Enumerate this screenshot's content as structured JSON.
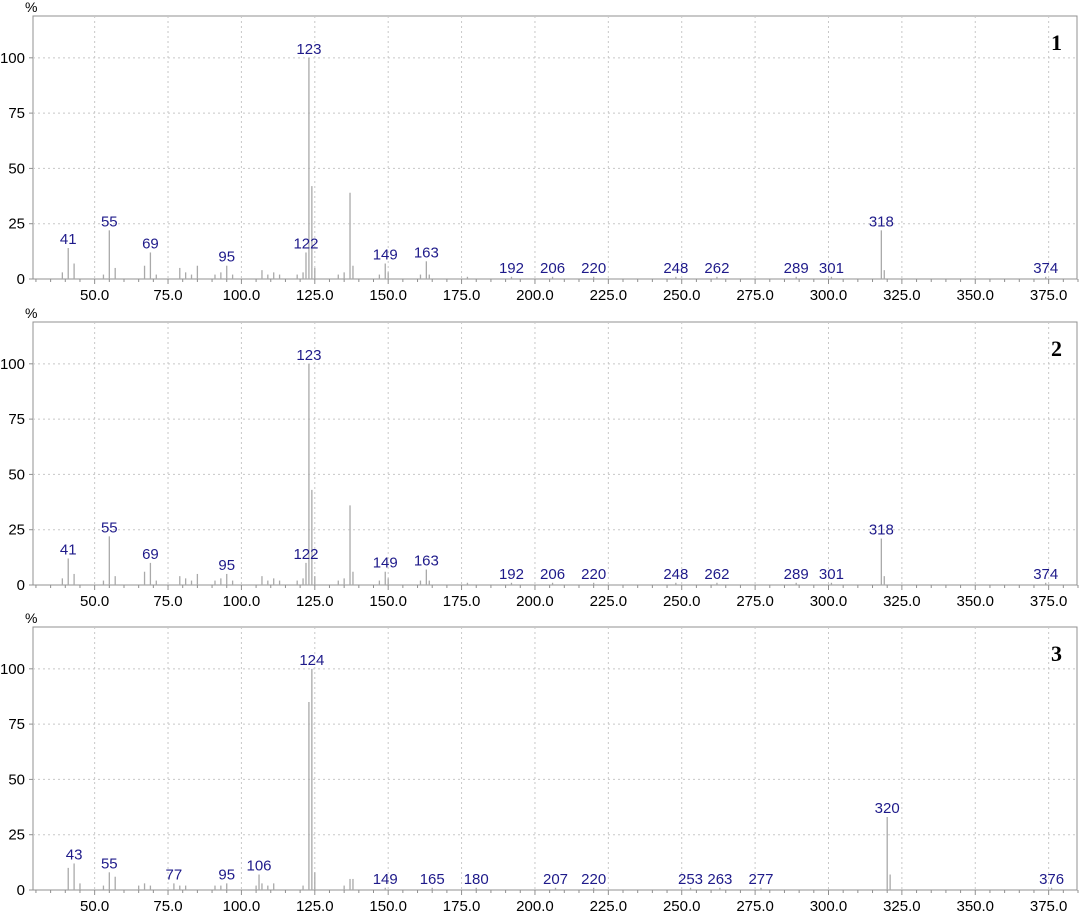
{
  "colors": {
    "bar": "#a9a9a9",
    "peak_label": "#1e1a8a",
    "grid": "#c8c8c8",
    "axis": "#909090",
    "text": "#000000"
  },
  "chart_data": [
    {
      "type": "bar",
      "panel_label": "1",
      "ylabel": "%",
      "xlim": [
        29,
        385
      ],
      "ylim": [
        0,
        118
      ],
      "x_ticks": [
        50,
        75,
        100,
        125,
        150,
        175,
        200,
        225,
        250,
        275,
        300,
        325,
        350,
        375
      ],
      "x_tick_labels": [
        "50.0",
        "75.0",
        "100.0",
        "125.0",
        "150.0",
        "175.0",
        "200.0",
        "225.0",
        "250.0",
        "275.0",
        "300.0",
        "325.0",
        "350.0",
        "375.0"
      ],
      "y_ticks": [
        0,
        25,
        50,
        75,
        100
      ],
      "y_tick_labels": [
        "0",
        "25",
        "50",
        "75",
        "100"
      ],
      "grid": true,
      "peaks": [
        {
          "x": 39,
          "y": 3
        },
        {
          "x": 41,
          "y": 14
        },
        {
          "x": 43,
          "y": 7
        },
        {
          "x": 53,
          "y": 2
        },
        {
          "x": 55,
          "y": 22
        },
        {
          "x": 57,
          "y": 5
        },
        {
          "x": 67,
          "y": 6
        },
        {
          "x": 69,
          "y": 12
        },
        {
          "x": 71,
          "y": 2
        },
        {
          "x": 79,
          "y": 5
        },
        {
          "x": 81,
          "y": 3
        },
        {
          "x": 83,
          "y": 2
        },
        {
          "x": 85,
          "y": 6
        },
        {
          "x": 91,
          "y": 2
        },
        {
          "x": 93,
          "y": 3
        },
        {
          "x": 95,
          "y": 6
        },
        {
          "x": 97,
          "y": 2
        },
        {
          "x": 107,
          "y": 4
        },
        {
          "x": 109,
          "y": 2
        },
        {
          "x": 111,
          "y": 3
        },
        {
          "x": 113,
          "y": 2
        },
        {
          "x": 119,
          "y": 2
        },
        {
          "x": 121,
          "y": 3
        },
        {
          "x": 122,
          "y": 12
        },
        {
          "x": 123,
          "y": 100
        },
        {
          "x": 124,
          "y": 42
        },
        {
          "x": 125,
          "y": 5
        },
        {
          "x": 133,
          "y": 2
        },
        {
          "x": 135,
          "y": 3
        },
        {
          "x": 137,
          "y": 39
        },
        {
          "x": 138,
          "y": 6
        },
        {
          "x": 147,
          "y": 2
        },
        {
          "x": 149,
          "y": 7
        },
        {
          "x": 150,
          "y": 3
        },
        {
          "x": 161,
          "y": 2
        },
        {
          "x": 163,
          "y": 8
        },
        {
          "x": 164,
          "y": 2
        },
        {
          "x": 177,
          "y": 1
        },
        {
          "x": 192,
          "y": 1
        },
        {
          "x": 206,
          "y": 1
        },
        {
          "x": 220,
          "y": 1
        },
        {
          "x": 248,
          "y": 1
        },
        {
          "x": 262,
          "y": 1
        },
        {
          "x": 289,
          "y": 1
        },
        {
          "x": 301,
          "y": 1
        },
        {
          "x": 318,
          "y": 22
        },
        {
          "x": 319,
          "y": 4
        },
        {
          "x": 374,
          "y": 1
        }
      ],
      "labels": [
        {
          "x": 41,
          "y": 14,
          "text": "41"
        },
        {
          "x": 55,
          "y": 22,
          "text": "55"
        },
        {
          "x": 69,
          "y": 12,
          "text": "69"
        },
        {
          "x": 95,
          "y": 6,
          "text": "95"
        },
        {
          "x": 122,
          "y": 12,
          "text": "122"
        },
        {
          "x": 123,
          "y": 100,
          "text": "123"
        },
        {
          "x": 149,
          "y": 7,
          "text": "149"
        },
        {
          "x": 163,
          "y": 8,
          "text": "163"
        },
        {
          "x": 192,
          "y": 1,
          "text": "192"
        },
        {
          "x": 206,
          "y": 1,
          "text": "206"
        },
        {
          "x": 220,
          "y": 1,
          "text": "220"
        },
        {
          "x": 248,
          "y": 1,
          "text": "248"
        },
        {
          "x": 262,
          "y": 1,
          "text": "262"
        },
        {
          "x": 289,
          "y": 1,
          "text": "289"
        },
        {
          "x": 301,
          "y": 1,
          "text": "301"
        },
        {
          "x": 318,
          "y": 22,
          "text": "318"
        },
        {
          "x": 374,
          "y": 1,
          "text": "374"
        }
      ]
    },
    {
      "type": "bar",
      "panel_label": "2",
      "ylabel": "%",
      "xlim": [
        29,
        385
      ],
      "ylim": [
        0,
        118
      ],
      "x_ticks": [
        50,
        75,
        100,
        125,
        150,
        175,
        200,
        225,
        250,
        275,
        300,
        325,
        350,
        375
      ],
      "x_tick_labels": [
        "50.0",
        "75.0",
        "100.0",
        "125.0",
        "150.0",
        "175.0",
        "200.0",
        "225.0",
        "250.0",
        "275.0",
        "300.0",
        "325.0",
        "350.0",
        "375.0"
      ],
      "y_ticks": [
        0,
        25,
        50,
        75,
        100
      ],
      "y_tick_labels": [
        "0",
        "25",
        "50",
        "75",
        "100"
      ],
      "grid": true,
      "peaks": [
        {
          "x": 39,
          "y": 3
        },
        {
          "x": 41,
          "y": 12
        },
        {
          "x": 43,
          "y": 5
        },
        {
          "x": 53,
          "y": 2
        },
        {
          "x": 55,
          "y": 22
        },
        {
          "x": 57,
          "y": 4
        },
        {
          "x": 67,
          "y": 6
        },
        {
          "x": 69,
          "y": 10
        },
        {
          "x": 71,
          "y": 2
        },
        {
          "x": 79,
          "y": 4
        },
        {
          "x": 81,
          "y": 3
        },
        {
          "x": 83,
          "y": 2
        },
        {
          "x": 85,
          "y": 5
        },
        {
          "x": 91,
          "y": 2
        },
        {
          "x": 93,
          "y": 3
        },
        {
          "x": 95,
          "y": 5
        },
        {
          "x": 97,
          "y": 2
        },
        {
          "x": 107,
          "y": 4
        },
        {
          "x": 109,
          "y": 2
        },
        {
          "x": 111,
          "y": 3
        },
        {
          "x": 113,
          "y": 2
        },
        {
          "x": 119,
          "y": 2
        },
        {
          "x": 121,
          "y": 3
        },
        {
          "x": 122,
          "y": 10
        },
        {
          "x": 123,
          "y": 100
        },
        {
          "x": 124,
          "y": 43
        },
        {
          "x": 125,
          "y": 4
        },
        {
          "x": 133,
          "y": 2
        },
        {
          "x": 135,
          "y": 3
        },
        {
          "x": 137,
          "y": 36
        },
        {
          "x": 138,
          "y": 6
        },
        {
          "x": 147,
          "y": 2
        },
        {
          "x": 149,
          "y": 6
        },
        {
          "x": 150,
          "y": 3
        },
        {
          "x": 161,
          "y": 2
        },
        {
          "x": 163,
          "y": 7
        },
        {
          "x": 164,
          "y": 2
        },
        {
          "x": 177,
          "y": 1
        },
        {
          "x": 192,
          "y": 1
        },
        {
          "x": 206,
          "y": 1
        },
        {
          "x": 220,
          "y": 1
        },
        {
          "x": 248,
          "y": 1
        },
        {
          "x": 262,
          "y": 1
        },
        {
          "x": 289,
          "y": 1
        },
        {
          "x": 301,
          "y": 1
        },
        {
          "x": 318,
          "y": 21
        },
        {
          "x": 319,
          "y": 4
        },
        {
          "x": 374,
          "y": 1
        }
      ],
      "labels": [
        {
          "x": 41,
          "y": 12,
          "text": "41"
        },
        {
          "x": 55,
          "y": 22,
          "text": "55"
        },
        {
          "x": 69,
          "y": 10,
          "text": "69"
        },
        {
          "x": 95,
          "y": 5,
          "text": "95"
        },
        {
          "x": 122,
          "y": 10,
          "text": "122"
        },
        {
          "x": 123,
          "y": 100,
          "text": "123"
        },
        {
          "x": 149,
          "y": 6,
          "text": "149"
        },
        {
          "x": 163,
          "y": 7,
          "text": "163"
        },
        {
          "x": 192,
          "y": 1,
          "text": "192"
        },
        {
          "x": 206,
          "y": 1,
          "text": "206"
        },
        {
          "x": 220,
          "y": 1,
          "text": "220"
        },
        {
          "x": 248,
          "y": 1,
          "text": "248"
        },
        {
          "x": 262,
          "y": 1,
          "text": "262"
        },
        {
          "x": 289,
          "y": 1,
          "text": "289"
        },
        {
          "x": 301,
          "y": 1,
          "text": "301"
        },
        {
          "x": 318,
          "y": 21,
          "text": "318"
        },
        {
          "x": 374,
          "y": 1,
          "text": "374"
        }
      ]
    },
    {
      "type": "bar",
      "panel_label": "3",
      "ylabel": "%",
      "xlim": [
        29,
        385
      ],
      "ylim": [
        0,
        118
      ],
      "x_ticks": [
        50,
        75,
        100,
        125,
        150,
        175,
        200,
        225,
        250,
        275,
        300,
        325,
        350,
        375
      ],
      "x_tick_labels": [
        "50.0",
        "75.0",
        "100.0",
        "125.0",
        "150.0",
        "175.0",
        "200.0",
        "225.0",
        "250.0",
        "275.0",
        "300.0",
        "325.0",
        "350.0",
        "375.0"
      ],
      "y_ticks": [
        0,
        25,
        50,
        75,
        100
      ],
      "y_tick_labels": [
        "0",
        "25",
        "50",
        "75",
        "100"
      ],
      "grid": true,
      "peaks": [
        {
          "x": 41,
          "y": 10
        },
        {
          "x": 43,
          "y": 12
        },
        {
          "x": 45,
          "y": 3
        },
        {
          "x": 53,
          "y": 2
        },
        {
          "x": 55,
          "y": 8
        },
        {
          "x": 57,
          "y": 6
        },
        {
          "x": 65,
          "y": 2
        },
        {
          "x": 67,
          "y": 3
        },
        {
          "x": 69,
          "y": 2
        },
        {
          "x": 77,
          "y": 3
        },
        {
          "x": 79,
          "y": 2
        },
        {
          "x": 81,
          "y": 2
        },
        {
          "x": 91,
          "y": 2
        },
        {
          "x": 93,
          "y": 2
        },
        {
          "x": 95,
          "y": 3
        },
        {
          "x": 105,
          "y": 2
        },
        {
          "x": 106,
          "y": 7
        },
        {
          "x": 107,
          "y": 3
        },
        {
          "x": 109,
          "y": 2
        },
        {
          "x": 111,
          "y": 3
        },
        {
          "x": 121,
          "y": 2
        },
        {
          "x": 123,
          "y": 85
        },
        {
          "x": 124,
          "y": 100
        },
        {
          "x": 125,
          "y": 8
        },
        {
          "x": 135,
          "y": 2
        },
        {
          "x": 137,
          "y": 5
        },
        {
          "x": 138,
          "y": 5
        },
        {
          "x": 149,
          "y": 1
        },
        {
          "x": 165,
          "y": 1
        },
        {
          "x": 180,
          "y": 1
        },
        {
          "x": 207,
          "y": 1
        },
        {
          "x": 220,
          "y": 1
        },
        {
          "x": 253,
          "y": 1
        },
        {
          "x": 263,
          "y": 1
        },
        {
          "x": 277,
          "y": 1
        },
        {
          "x": 320,
          "y": 33
        },
        {
          "x": 321,
          "y": 7
        },
        {
          "x": 376,
          "y": 1
        }
      ],
      "labels": [
        {
          "x": 43,
          "y": 12,
          "text": "43"
        },
        {
          "x": 55,
          "y": 8,
          "text": "55"
        },
        {
          "x": 77,
          "y": 3,
          "text": "77"
        },
        {
          "x": 95,
          "y": 3,
          "text": "95"
        },
        {
          "x": 106,
          "y": 7,
          "text": "106"
        },
        {
          "x": 124,
          "y": 100,
          "text": "124"
        },
        {
          "x": 149,
          "y": 1,
          "text": "149"
        },
        {
          "x": 165,
          "y": 1,
          "text": "165"
        },
        {
          "x": 180,
          "y": 1,
          "text": "180"
        },
        {
          "x": 207,
          "y": 1,
          "text": "207"
        },
        {
          "x": 220,
          "y": 1,
          "text": "220"
        },
        {
          "x": 253,
          "y": 1,
          "text": "253"
        },
        {
          "x": 263,
          "y": 1,
          "text": "263"
        },
        {
          "x": 277,
          "y": 1,
          "text": "277"
        },
        {
          "x": 320,
          "y": 33,
          "text": "320"
        },
        {
          "x": 376,
          "y": 1,
          "text": "376"
        }
      ]
    }
  ]
}
